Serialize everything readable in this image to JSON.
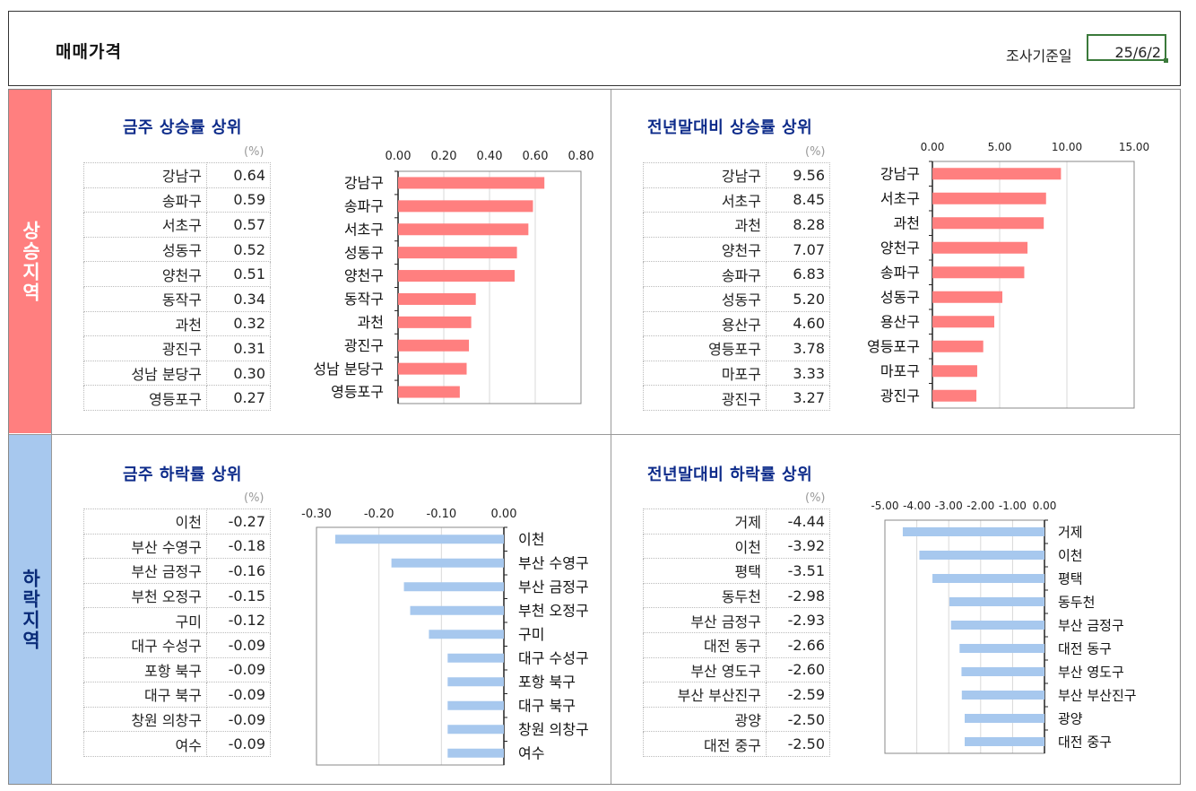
{
  "header": {
    "title": "매매가격",
    "survey_label": "조사기준일",
    "survey_date": "25/6/2"
  },
  "sections": {
    "up_label": "상승지역",
    "down_label": "하락지역"
  },
  "panels": {
    "weekly_up": {
      "title": "금주 상승률 상위",
      "unit": "(%)",
      "rows": [
        {
          "name": "강남구",
          "value": "0.64"
        },
        {
          "name": "송파구",
          "value": "0.59"
        },
        {
          "name": "서초구",
          "value": "0.57"
        },
        {
          "name": "성동구",
          "value": "0.52"
        },
        {
          "name": "양천구",
          "value": "0.51"
        },
        {
          "name": "동작구",
          "value": "0.34"
        },
        {
          "name": "과천",
          "value": "0.32"
        },
        {
          "name": "광진구",
          "value": "0.31"
        },
        {
          "name": "성남 분당구",
          "value": "0.30"
        },
        {
          "name": "영등포구",
          "value": "0.27"
        }
      ]
    },
    "ytd_up": {
      "title": "전년말대비 상승률 상위",
      "unit": "(%)",
      "rows": [
        {
          "name": "강남구",
          "value": "9.56"
        },
        {
          "name": "서초구",
          "value": "8.45"
        },
        {
          "name": "과천",
          "value": "8.28"
        },
        {
          "name": "양천구",
          "value": "7.07"
        },
        {
          "name": "송파구",
          "value": "6.83"
        },
        {
          "name": "성동구",
          "value": "5.20"
        },
        {
          "name": "용산구",
          "value": "4.60"
        },
        {
          "name": "영등포구",
          "value": "3.78"
        },
        {
          "name": "마포구",
          "value": "3.33"
        },
        {
          "name": "광진구",
          "value": "3.27"
        }
      ]
    },
    "weekly_down": {
      "title": "금주 하락률 상위",
      "unit": "(%)",
      "rows": [
        {
          "name": "이천",
          "value": "-0.27"
        },
        {
          "name": "부산 수영구",
          "value": "-0.18"
        },
        {
          "name": "부산 금정구",
          "value": "-0.16"
        },
        {
          "name": "부천 오정구",
          "value": "-0.15"
        },
        {
          "name": "구미",
          "value": "-0.12"
        },
        {
          "name": "대구 수성구",
          "value": "-0.09"
        },
        {
          "name": "포항 북구",
          "value": "-0.09"
        },
        {
          "name": "대구 북구",
          "value": "-0.09"
        },
        {
          "name": "창원 의창구",
          "value": "-0.09"
        },
        {
          "name": "여수",
          "value": "-0.09"
        }
      ]
    },
    "ytd_down": {
      "title": "전년말대비 하락률 상위",
      "unit": "(%)",
      "rows": [
        {
          "name": "거제",
          "value": "-4.44"
        },
        {
          "name": "이천",
          "value": "-3.92"
        },
        {
          "name": "평택",
          "value": "-3.51"
        },
        {
          "name": "동두천",
          "value": "-2.98"
        },
        {
          "name": "부산 금정구",
          "value": "-2.93"
        },
        {
          "name": "대전 동구",
          "value": "-2.66"
        },
        {
          "name": "부산 영도구",
          "value": "-2.60"
        },
        {
          "name": "부산 부산진구",
          "value": "-2.59"
        },
        {
          "name": "광양",
          "value": "-2.50"
        },
        {
          "name": "대전 중구",
          "value": "-2.50"
        }
      ]
    }
  },
  "chart_data": [
    {
      "id": "weekly_up",
      "type": "bar",
      "orientation": "horizontal",
      "color": "#ff7f7f",
      "categories": [
        "강남구",
        "송파구",
        "서초구",
        "성동구",
        "양천구",
        "동작구",
        "과천",
        "광진구",
        "성남 분당구",
        "영등포구"
      ],
      "values": [
        0.64,
        0.59,
        0.57,
        0.52,
        0.51,
        0.34,
        0.32,
        0.31,
        0.3,
        0.27
      ],
      "xlim": [
        0,
        0.8
      ],
      "ticks": [
        "0.00",
        "0.20",
        "0.40",
        "0.60",
        "0.80"
      ],
      "tick_values": [
        0,
        0.2,
        0.4,
        0.6,
        0.8
      ]
    },
    {
      "id": "ytd_up",
      "type": "bar",
      "orientation": "horizontal",
      "color": "#ff7f7f",
      "categories": [
        "강남구",
        "서초구",
        "과천",
        "양천구",
        "송파구",
        "성동구",
        "용산구",
        "영등포구",
        "마포구",
        "광진구"
      ],
      "values": [
        9.56,
        8.45,
        8.28,
        7.07,
        6.83,
        5.2,
        4.6,
        3.78,
        3.33,
        3.27
      ],
      "xlim": [
        0,
        15
      ],
      "ticks": [
        "0.00",
        "5.00",
        "10.00",
        "15.00"
      ],
      "tick_values": [
        0,
        5,
        10,
        15
      ]
    },
    {
      "id": "weekly_down",
      "type": "bar",
      "orientation": "horizontal",
      "color": "#a7c8ee",
      "categories": [
        "이천",
        "부산 수영구",
        "부산 금정구",
        "부천 오정구",
        "구미",
        "대구 수성구",
        "포항 북구",
        "대구 북구",
        "창원 의창구",
        "여수"
      ],
      "values": [
        -0.27,
        -0.18,
        -0.16,
        -0.15,
        -0.12,
        -0.09,
        -0.09,
        -0.09,
        -0.09,
        -0.09
      ],
      "xlim": [
        -0.3,
        0
      ],
      "ticks": [
        "-0.30",
        "-0.20",
        "-0.10",
        "0.00"
      ],
      "tick_values": [
        -0.3,
        -0.2,
        -0.1,
        0
      ]
    },
    {
      "id": "ytd_down",
      "type": "bar",
      "orientation": "horizontal",
      "color": "#a7c8ee",
      "categories": [
        "거제",
        "이천",
        "평택",
        "동두천",
        "부산 금정구",
        "대전 동구",
        "부산 영도구",
        "부산 부산진구",
        "광양",
        "대전 중구"
      ],
      "values": [
        -4.44,
        -3.92,
        -3.51,
        -2.98,
        -2.93,
        -2.66,
        -2.6,
        -2.59,
        -2.5,
        -2.5
      ],
      "xlim": [
        -5,
        0
      ],
      "ticks": [
        "-5.00",
        "-4.00",
        "-3.00",
        "-2.00",
        "-1.00",
        "0.00"
      ],
      "tick_values": [
        -5,
        -4,
        -3,
        -2,
        -1,
        0
      ]
    }
  ]
}
